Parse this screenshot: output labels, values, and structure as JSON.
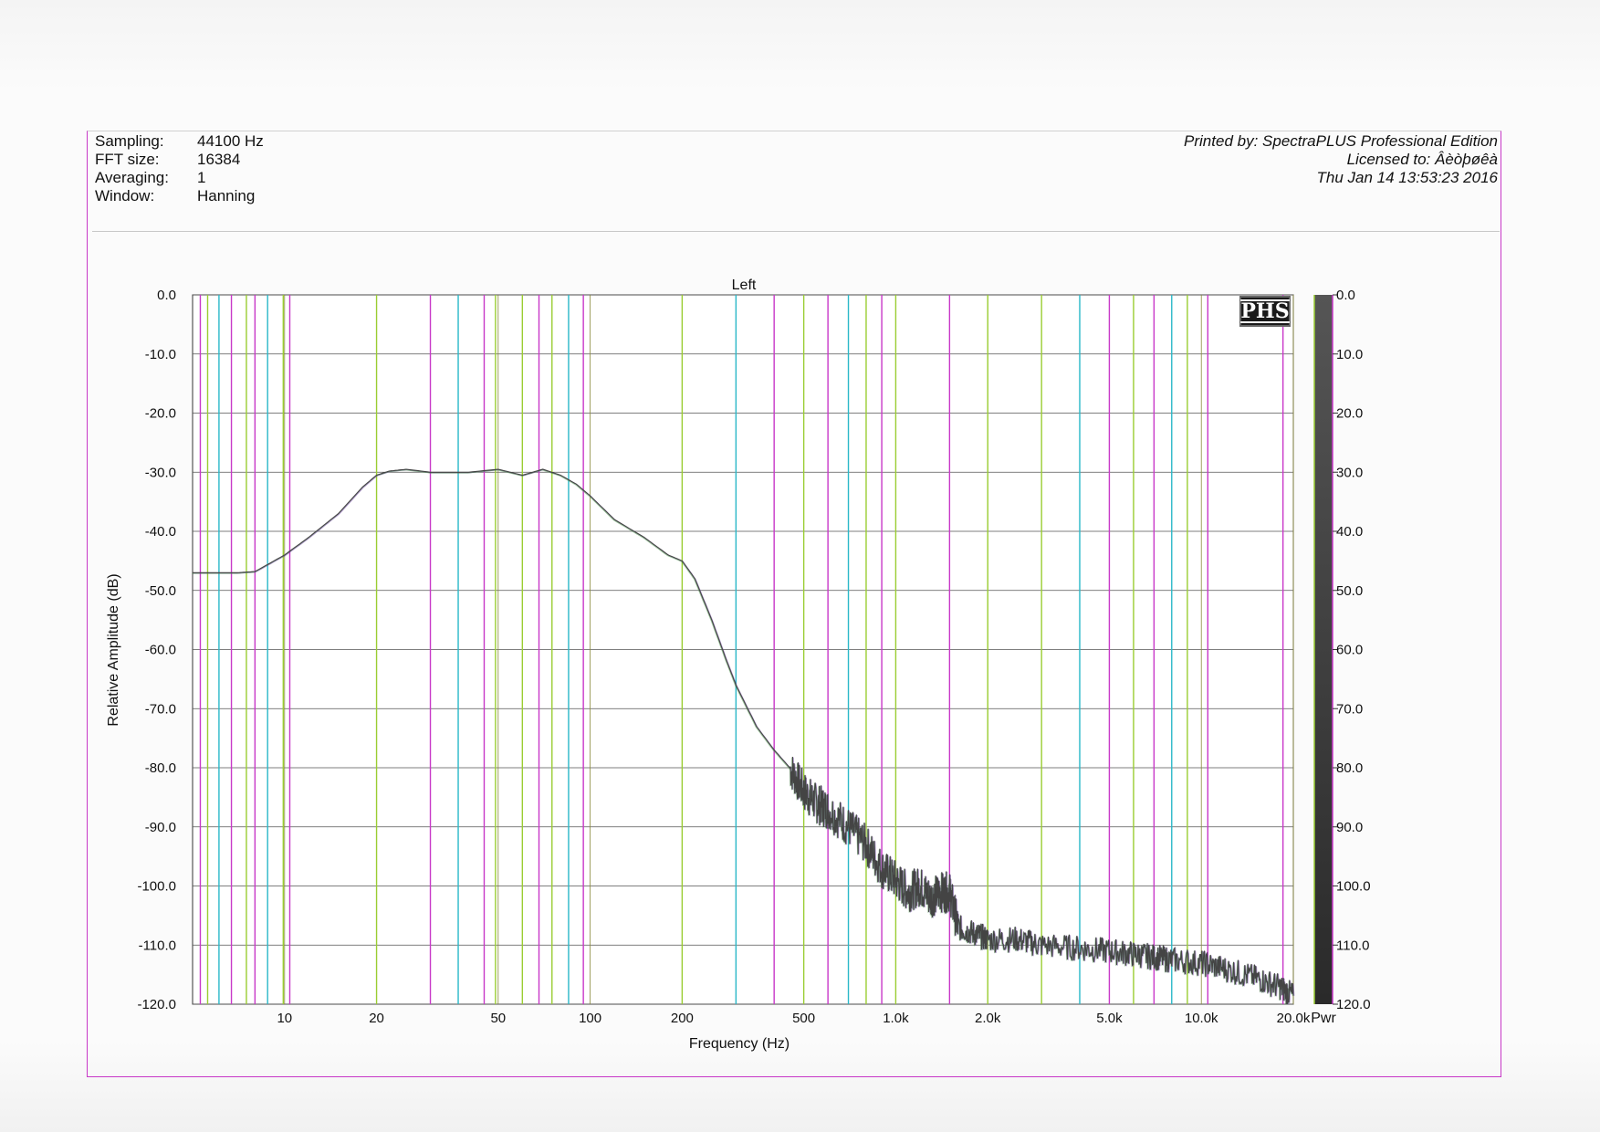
{
  "header": {
    "fields": [
      {
        "label": "Sampling:",
        "value": "44100 Hz"
      },
      {
        "label": "FFT size:",
        "value": "16384"
      },
      {
        "label": "Averaging:",
        "value": "1"
      },
      {
        "label": "Window:",
        "value": "Hanning"
      }
    ],
    "printed_by": "Printed by: SpectraPLUS Professional Edition",
    "licensed_to": "Licensed to: Âèòþøêà",
    "timestamp": "Thu Jan 14 13:53:23 2016"
  },
  "logo": "PHS",
  "chart_data": {
    "type": "line",
    "title": "Left",
    "xlabel": "Frequency (Hz)",
    "ylabel": "Relative Amplitude (dB)",
    "x_scale": "log",
    "xlim": [
      5,
      20000
    ],
    "ylim": [
      -120,
      0
    ],
    "x_ticks": [
      {
        "value": 10,
        "label": "10"
      },
      {
        "value": 20,
        "label": "20"
      },
      {
        "value": 50,
        "label": "50"
      },
      {
        "value": 100,
        "label": "100"
      },
      {
        "value": 200,
        "label": "200"
      },
      {
        "value": 500,
        "label": "500"
      },
      {
        "value": 1000,
        "label": "1.0k"
      },
      {
        "value": 2000,
        "label": "2.0k"
      },
      {
        "value": 5000,
        "label": "5.0k"
      },
      {
        "value": 10000,
        "label": "10.0k"
      },
      {
        "value": 20000,
        "label": "20.0k"
      }
    ],
    "y_ticks": [
      {
        "value": 0,
        "label": "0.0"
      },
      {
        "value": -10,
        "label": "-10.0"
      },
      {
        "value": -20,
        "label": "-20.0"
      },
      {
        "value": -30,
        "label": "-30.0"
      },
      {
        "value": -40,
        "label": "-40.0"
      },
      {
        "value": -50,
        "label": "-50.0"
      },
      {
        "value": -60,
        "label": "-60.0"
      },
      {
        "value": -70,
        "label": "-70.0"
      },
      {
        "value": -80,
        "label": "-80.0"
      },
      {
        "value": -90,
        "label": "-90.0"
      },
      {
        "value": -100,
        "label": "-100.0"
      },
      {
        "value": -110,
        "label": "-110.0"
      },
      {
        "value": -120,
        "label": "-120.0"
      }
    ],
    "marker_lines": [
      {
        "freq": 5.3,
        "color": "#c838c8"
      },
      {
        "freq": 5.6,
        "color": "#9acd32"
      },
      {
        "freq": 6.1,
        "color": "#2ab8c8"
      },
      {
        "freq": 6.7,
        "color": "#c838c8"
      },
      {
        "freq": 7.5,
        "color": "#9acd32"
      },
      {
        "freq": 8.0,
        "color": "#c838c8"
      },
      {
        "freq": 8.8,
        "color": "#2ab8c8"
      },
      {
        "freq": 9.9,
        "color": "#9acd32"
      },
      {
        "freq": 10.4,
        "color": "#c838c8"
      },
      {
        "freq": 20,
        "color": "#9acd32"
      },
      {
        "freq": 30,
        "color": "#c838c8"
      },
      {
        "freq": 37,
        "color": "#2ab8c8"
      },
      {
        "freq": 45,
        "color": "#c838c8"
      },
      {
        "freq": 49,
        "color": "#9acd32"
      },
      {
        "freq": 60,
        "color": "#9acd32"
      },
      {
        "freq": 68,
        "color": "#c838c8"
      },
      {
        "freq": 75,
        "color": "#9acd32"
      },
      {
        "freq": 85,
        "color": "#2ab8c8"
      },
      {
        "freq": 95,
        "color": "#c838c8"
      },
      {
        "freq": 200,
        "color": "#9acd32"
      },
      {
        "freq": 300,
        "color": "#2ab8c8"
      },
      {
        "freq": 400,
        "color": "#c838c8"
      },
      {
        "freq": 500,
        "color": "#9acd32"
      },
      {
        "freq": 600,
        "color": "#c838c8"
      },
      {
        "freq": 700,
        "color": "#2ab8c8"
      },
      {
        "freq": 800,
        "color": "#9acd32"
      },
      {
        "freq": 900,
        "color": "#c838c8"
      },
      {
        "freq": 1000,
        "color": "#9acd32"
      },
      {
        "freq": 1500,
        "color": "#c838c8"
      },
      {
        "freq": 2000,
        "color": "#9acd32"
      },
      {
        "freq": 3000,
        "color": "#9acd32"
      },
      {
        "freq": 4000,
        "color": "#2ab8c8"
      },
      {
        "freq": 5000,
        "color": "#c838c8"
      },
      {
        "freq": 6000,
        "color": "#9acd32"
      },
      {
        "freq": 7000,
        "color": "#c838c8"
      },
      {
        "freq": 8000,
        "color": "#2ab8c8"
      },
      {
        "freq": 9000,
        "color": "#9acd32"
      },
      {
        "freq": 10500,
        "color": "#c838c8"
      },
      {
        "freq": 18500,
        "color": "#c838c8"
      }
    ],
    "series": [
      {
        "color": "#444444",
        "x": [
          5,
          7,
          8,
          10,
          12,
          15,
          18,
          20,
          22,
          25,
          30,
          40,
          50,
          60,
          70,
          80,
          90,
          100,
          120,
          150,
          180,
          200,
          220,
          250,
          280,
          300,
          350,
          400,
          450,
          500,
          550,
          600,
          700,
          800,
          900,
          1000,
          1100,
          1200,
          1300,
          1400,
          1500,
          1600,
          1800,
          2000,
          2500,
          3000,
          4000,
          5000,
          6000,
          7000,
          8000,
          10000,
          12000,
          15000,
          18000,
          20000
        ],
        "y": [
          -47,
          -47,
          -46.8,
          -44,
          -41,
          -37,
          -32.5,
          -30.5,
          -29.8,
          -29.5,
          -30,
          -30,
          -29.5,
          -30.5,
          -29.5,
          -30.5,
          -32,
          -34,
          -38,
          -41,
          -44,
          -45,
          -48,
          -55,
          -62,
          -66,
          -73,
          -77,
          -80,
          -84,
          -86,
          -87,
          -90,
          -93,
          -97,
          -99,
          -101,
          -100,
          -102,
          -101,
          -101,
          -107,
          -108,
          -109,
          -109,
          -110,
          -110.5,
          -111,
          -111.5,
          -112,
          -112.5,
          -113,
          -114,
          -115.5,
          -117,
          -118.5
        ]
      }
    ],
    "colorbar": {
      "label": "Pwr",
      "range": [
        0,
        -120
      ],
      "tick_labels": [
        "0.0",
        "10.0",
        "20.0",
        "30.0",
        "40.0",
        "50.0",
        "60.0",
        "70.0",
        "80.0",
        "90.0",
        "100.0",
        "110.0",
        "120.0"
      ]
    },
    "grid": true
  }
}
